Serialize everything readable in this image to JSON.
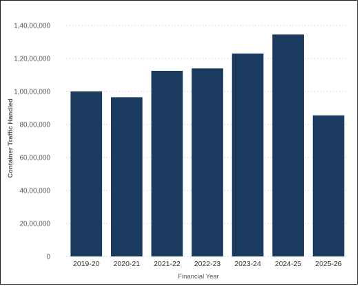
{
  "chart_data": {
    "type": "bar",
    "categories": [
      "2019-20",
      "2020-21",
      "2021-22",
      "2022-23",
      "2023-24",
      "2024-25",
      "2025-26"
    ],
    "values": [
      10000000,
      9650000,
      11250000,
      11400000,
      12300000,
      13450000,
      8550000
    ],
    "xlabel": "Financial Year",
    "ylabel": "Container Traffic Handled",
    "ylim": [
      0,
      14000000
    ],
    "yticks": [
      0,
      2000000,
      4000000,
      6000000,
      8000000,
      10000000,
      12000000,
      14000000
    ],
    "ytick_labels": [
      "0",
      "20,00,000",
      "40,00,000",
      "60,00,000",
      "80,00,000",
      "1,00,00,000",
      "1,20,00,000",
      "1,40,00,000"
    ],
    "grid": "horizontal dotted",
    "bar_color": "#1b3a5f",
    "grid_color": "#d0d0d0"
  }
}
